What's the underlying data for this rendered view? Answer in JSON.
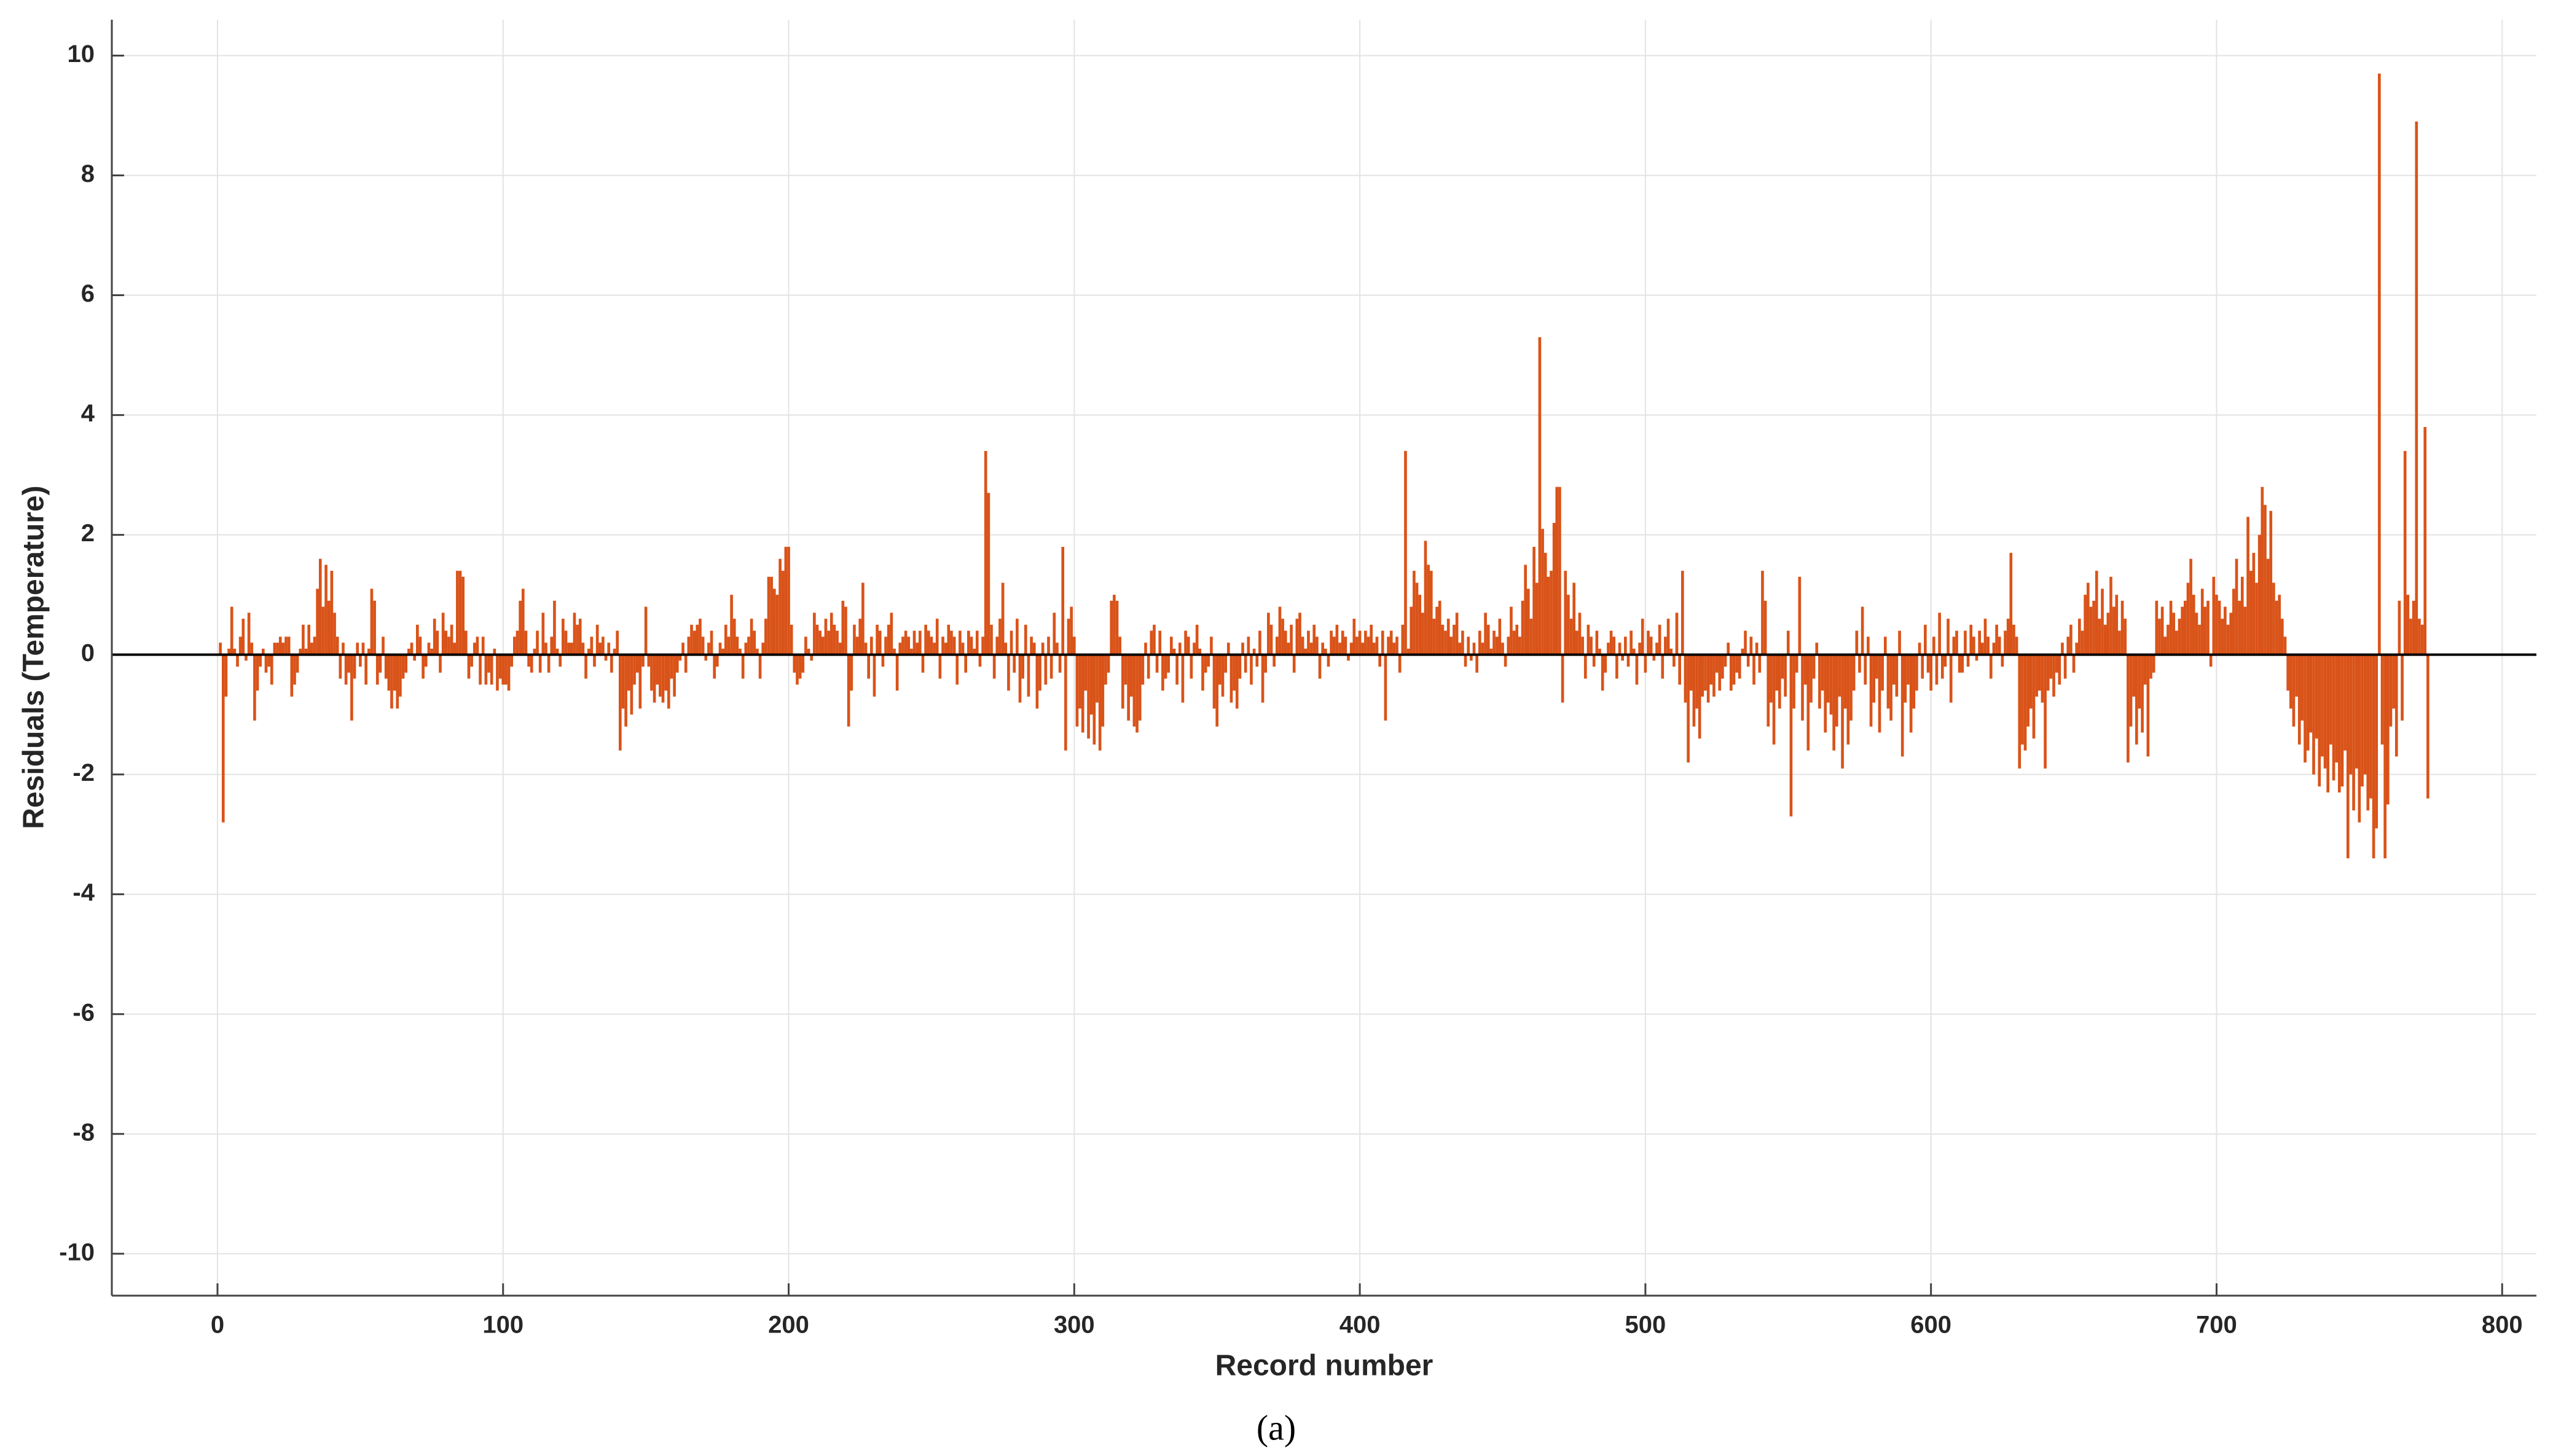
{
  "chart_data": {
    "type": "bar",
    "xlabel": "Record number",
    "ylabel": "Residuals (Temperature)",
    "caption": "(a)",
    "color": "#d95319",
    "grid": true,
    "xlim": [
      -37,
      812
    ],
    "ylim": [
      -10.7,
      10.6
    ],
    "xticks": [
      0,
      100,
      200,
      300,
      400,
      500,
      600,
      700,
      800
    ],
    "yticks": [
      -10,
      -8,
      -6,
      -4,
      -2,
      0,
      2,
      4,
      6,
      8,
      10
    ],
    "x": [
      1,
      2,
      3,
      4,
      5,
      6,
      7,
      8,
      9,
      10,
      11,
      12,
      13,
      14,
      15,
      16,
      17,
      18,
      19,
      20,
      21,
      22,
      23,
      24,
      25,
      26,
      27,
      28,
      29,
      30,
      31,
      32,
      33,
      34,
      35,
      36,
      37,
      38,
      39,
      40,
      41,
      42,
      43,
      44,
      45,
      46,
      47,
      48,
      49,
      50,
      51,
      52,
      53,
      54,
      55,
      56,
      57,
      58,
      59,
      60,
      61,
      62,
      63,
      64,
      65,
      66,
      67,
      68,
      69,
      70,
      71,
      72,
      73,
      74,
      75,
      76,
      77,
      78,
      79,
      80,
      81,
      82,
      83,
      84,
      85,
      86,
      87,
      88,
      89,
      90,
      91,
      92,
      93,
      94,
      95,
      96,
      97,
      98,
      99,
      100,
      101,
      102,
      103,
      104,
      105,
      106,
      107,
      108,
      109,
      110,
      111,
      112,
      113,
      114,
      115,
      116,
      117,
      118,
      119,
      120,
      121,
      122,
      123,
      124,
      125,
      126,
      127,
      128,
      129,
      130,
      131,
      132,
      133,
      134,
      135,
      136,
      137,
      138,
      139,
      140,
      141,
      142,
      143,
      144,
      145,
      146,
      147,
      148,
      149,
      150,
      151,
      152,
      153,
      154,
      155,
      156,
      157,
      158,
      159,
      160,
      161,
      162,
      163,
      164,
      165,
      166,
      167,
      168,
      169,
      170,
      171,
      172,
      173,
      174,
      175,
      176,
      177,
      178,
      179,
      180,
      181,
      182,
      183,
      184,
      185,
      186,
      187,
      188,
      189,
      190,
      191,
      192,
      193,
      194,
      195,
      196,
      197,
      198,
      199,
      200,
      201,
      202,
      203,
      204,
      205,
      206,
      207,
      208,
      209,
      210,
      211,
      212,
      213,
      214,
      215,
      216,
      217,
      218,
      219,
      220,
      221,
      222,
      223,
      224,
      225,
      226,
      227,
      228,
      229,
      230,
      231,
      232,
      233,
      234,
      235,
      236,
      237,
      238,
      239,
      240,
      241,
      242,
      243,
      244,
      245,
      246,
      247,
      248,
      249,
      250,
      251,
      252,
      253,
      254,
      255,
      256,
      257,
      258,
      259,
      260,
      261,
      262,
      263,
      264,
      265,
      266,
      267,
      268,
      269,
      270,
      271,
      272,
      273,
      274,
      275,
      276,
      277,
      278,
      279,
      280,
      281,
      282,
      283,
      284,
      285,
      286,
      287,
      288,
      289,
      290,
      291,
      292,
      293,
      294,
      295,
      296,
      297,
      298,
      299,
      300,
      301,
      302,
      303,
      304,
      305,
      306,
      307,
      308,
      309,
      310,
      311,
      312,
      313,
      314,
      315,
      316,
      317,
      318,
      319,
      320,
      321,
      322,
      323,
      324,
      325,
      326,
      327,
      328,
      329,
      330,
      331,
      332,
      333,
      334,
      335,
      336,
      337,
      338,
      339,
      340,
      341,
      342,
      343,
      344,
      345,
      346,
      347,
      348,
      349,
      350,
      351,
      352,
      353,
      354,
      355,
      356,
      357,
      358,
      359,
      360,
      361,
      362,
      363,
      364,
      365,
      366,
      367,
      368,
      369,
      370,
      371,
      372,
      373,
      374,
      375,
      376,
      377,
      378,
      379,
      380,
      381,
      382,
      383,
      384,
      385,
      386,
      387,
      388,
      389,
      390,
      391,
      392,
      393,
      394,
      395,
      396,
      397,
      398,
      399,
      400,
      401,
      402,
      403,
      404,
      405,
      406,
      407,
      408,
      409,
      410,
      411,
      412,
      413,
      414,
      415,
      416,
      417,
      418,
      419,
      420,
      421,
      422,
      423,
      424,
      425,
      426,
      427,
      428,
      429,
      430,
      431,
      432,
      433,
      434,
      435,
      436,
      437,
      438,
      439,
      440,
      441,
      442,
      443,
      444,
      445,
      446,
      447,
      448,
      449,
      450,
      451,
      452,
      453,
      454,
      455,
      456,
      457,
      458,
      459,
      460,
      461,
      462,
      463,
      464,
      465,
      466,
      467,
      468,
      469,
      470,
      471,
      472,
      473,
      474,
      475,
      476,
      477,
      478,
      479,
      480,
      481,
      482,
      483,
      484,
      485,
      486,
      487,
      488,
      489,
      490,
      491,
      492,
      493,
      494,
      495,
      496,
      497,
      498,
      499,
      500,
      501,
      502,
      503,
      504,
      505,
      506,
      507,
      508,
      509,
      510,
      511,
      512,
      513,
      514,
      515,
      516,
      517,
      518,
      519,
      520,
      521,
      522,
      523,
      524,
      525,
      526,
      527,
      528,
      529,
      530,
      531,
      532,
      533,
      534,
      535,
      536,
      537,
      538,
      539,
      540,
      541,
      542,
      543,
      544,
      545,
      546,
      547,
      548,
      549,
      550,
      551,
      552,
      553,
      554,
      555,
      556,
      557,
      558,
      559,
      560,
      561,
      562,
      563,
      564,
      565,
      566,
      567,
      568,
      569,
      570,
      571,
      572,
      573,
      574,
      575,
      576,
      577,
      578,
      579,
      580,
      581,
      582,
      583,
      584,
      585,
      586,
      587,
      588,
      589,
      590,
      591,
      592,
      593,
      594,
      595,
      596,
      597,
      598,
      599,
      600,
      601,
      602,
      603,
      604,
      605,
      606,
      607,
      608,
      609,
      610,
      611,
      612,
      613,
      614,
      615,
      616,
      617,
      618,
      619,
      620,
      621,
      622,
      623,
      624,
      625,
      626,
      627,
      628,
      629,
      630,
      631,
      632,
      633,
      634,
      635,
      636,
      637,
      638,
      639,
      640,
      641,
      642,
      643,
      644,
      645,
      646,
      647,
      648,
      649,
      650,
      651,
      652,
      653,
      654,
      655,
      656,
      657,
      658,
      659,
      660,
      661,
      662,
      663,
      664,
      665,
      666,
      667,
      668,
      669,
      670,
      671,
      672,
      673,
      674,
      675,
      676,
      677,
      678,
      679,
      680,
      681,
      682,
      683,
      684,
      685,
      686,
      687,
      688,
      689,
      690,
      691,
      692,
      693,
      694,
      695,
      696,
      697,
      698,
      699,
      700,
      701,
      702,
      703,
      704,
      705,
      706,
      707,
      708,
      709,
      710,
      711,
      712,
      713,
      714,
      715,
      716,
      717,
      718,
      719,
      720,
      721,
      722,
      723,
      724,
      725,
      726,
      727,
      728,
      729,
      730,
      731,
      732,
      733,
      734,
      735,
      736,
      737,
      738,
      739,
      740,
      741,
      742,
      743,
      744,
      745,
      746,
      747,
      748,
      749,
      750,
      751,
      752,
      753,
      754,
      755,
      756,
      757,
      758,
      759,
      760,
      761,
      762,
      763,
      764,
      765,
      766,
      767,
      768,
      769,
      770,
      771,
      772,
      773,
      774
    ],
    "values": [
      0.2,
      -2.8,
      -0.7,
      0.1,
      0.8,
      0.1,
      -0.2,
      0.3,
      0.6,
      -0.1,
      0.7,
      0.2,
      -1.1,
      -0.6,
      -0.2,
      0.1,
      -0.3,
      -0.2,
      -0.5,
      0.2,
      0.2,
      0.3,
      0.2,
      0.3,
      0.3,
      -0.7,
      -0.5,
      -0.3,
      0.1,
      0.5,
      0.1,
      0.5,
      0.2,
      0.3,
      1.1,
      1.6,
      0.8,
      1.5,
      0.9,
      1.4,
      0.7,
      0.3,
      -0.4,
      0.2,
      -0.5,
      -0.3,
      -1.1,
      -0.4,
      0.2,
      -0.2,
      0.2,
      -0.5,
      0.1,
      1.1,
      0.9,
      -0.5,
      -0.3,
      0.3,
      -0.4,
      -0.6,
      -0.9,
      -0.6,
      -0.9,
      -0.7,
      -0.4,
      -0.3,
      0.1,
      0.2,
      -0.1,
      0.5,
      0.3,
      -0.4,
      -0.2,
      0.2,
      0.1,
      0.6,
      0.4,
      -0.3,
      0.7,
      0.4,
      0.3,
      0.5,
      0.2,
      1.4,
      1.4,
      1.3,
      0.4,
      -0.4,
      -0.2,
      0.2,
      0.3,
      -0.5,
      0.3,
      -0.5,
      -0.3,
      -0.5,
      0.1,
      -0.6,
      -0.4,
      -0.5,
      -0.5,
      -0.6,
      -0.2,
      0.3,
      0.4,
      0.9,
      1.1,
      0.4,
      -0.2,
      -0.3,
      0.1,
      0.4,
      -0.3,
      0.7,
      0.2,
      -0.3,
      0.3,
      0.9,
      0.1,
      -0.2,
      0.6,
      0.4,
      0.2,
      0.2,
      0.7,
      0.5,
      0.6,
      0.2,
      -0.4,
      0.1,
      0.3,
      -0.2,
      0.5,
      0.2,
      0.3,
      -0.1,
      0.2,
      -0.3,
      0.1,
      0.4,
      -1.6,
      -0.9,
      -1.2,
      -0.6,
      -1.0,
      -0.5,
      -0.3,
      -0.9,
      -0.2,
      0.8,
      -0.2,
      -0.6,
      -0.8,
      -0.5,
      -0.7,
      -0.8,
      -0.6,
      -0.9,
      -0.4,
      -0.7,
      -0.3,
      -0.1,
      0.2,
      -0.3,
      0.3,
      0.5,
      0.4,
      0.5,
      0.6,
      0.3,
      -0.1,
      0.2,
      0.4,
      -0.4,
      -0.2,
      0.2,
      0.1,
      0.5,
      0.3,
      1.0,
      0.6,
      0.3,
      0.1,
      -0.4,
      0.2,
      0.3,
      0.6,
      0.4,
      0.1,
      -0.4,
      0.2,
      0.6,
      1.3,
      1.3,
      1.1,
      1.0,
      1.6,
      1.4,
      1.8,
      1.8,
      0.5,
      -0.3,
      -0.5,
      -0.4,
      -0.3,
      0.3,
      0.1,
      -0.1,
      0.7,
      0.5,
      0.4,
      0.3,
      0.6,
      0.4,
      0.7,
      0.5,
      0.4,
      0.2,
      0.9,
      0.8,
      -1.2,
      -0.6,
      0.5,
      0.3,
      0.6,
      1.2,
      0.2,
      -0.4,
      0.3,
      -0.7,
      0.5,
      0.4,
      -0.2,
      0.3,
      0.5,
      0.7,
      0.1,
      -0.6,
      0.2,
      0.3,
      0.4,
      0.3,
      0.1,
      0.4,
      0.2,
      0.4,
      -0.3,
      0.5,
      0.4,
      0.3,
      0.2,
      0.6,
      -0.4,
      0.3,
      0.2,
      0.5,
      0.4,
      0.3,
      -0.5,
      0.4,
      0.2,
      -0.3,
      0.4,
      0.3,
      0.1,
      0.4,
      -0.2,
      0.3,
      3.4,
      2.7,
      0.5,
      -0.4,
      0.3,
      0.6,
      1.2,
      0.2,
      -0.6,
      0.4,
      -0.3,
      0.6,
      -0.8,
      -0.4,
      0.5,
      -0.7,
      0.3,
      0.2,
      -0.9,
      -0.6,
      0.2,
      -0.5,
      0.3,
      -0.4,
      0.7,
      0.2,
      -0.3,
      1.8,
      -1.6,
      0.6,
      0.8,
      0.3,
      -1.2,
      -0.9,
      -1.3,
      -0.6,
      -1.4,
      -1.0,
      -1.5,
      -0.8,
      -1.6,
      -1.2,
      -0.5,
      -0.3,
      0.9,
      1.0,
      0.9,
      0.3,
      -0.9,
      -0.5,
      -1.1,
      -0.7,
      -1.2,
      -1.3,
      -1.1,
      -0.5,
      0.2,
      -0.4,
      0.4,
      0.5,
      -0.3,
      0.4,
      -0.6,
      -0.4,
      -0.3,
      0.3,
      0.1,
      -0.5,
      0.2,
      -0.8,
      0.4,
      0.3,
      -0.4,
      0.2,
      0.5,
      0.1,
      -0.6,
      -0.3,
      -0.2,
      0.3,
      -0.9,
      -1.2,
      -0.5,
      -0.7,
      -0.3,
      0.2,
      -0.8,
      -0.6,
      -0.9,
      -0.4,
      0.2,
      -0.3,
      0.3,
      -0.5,
      0.1,
      -0.2,
      0.4,
      -0.8,
      -0.3,
      0.7,
      0.5,
      -0.2,
      0.3,
      0.8,
      0.6,
      0.4,
      0.2,
      0.5,
      -0.3,
      0.6,
      0.7,
      0.3,
      0.1,
      0.4,
      0.2,
      0.5,
      0.3,
      -0.4,
      0.2,
      0.1,
      -0.2,
      0.4,
      0.3,
      0.5,
      0.2,
      0.4,
      0.3,
      -0.1,
      0.2,
      0.6,
      0.3,
      0.4,
      0.2,
      0.4,
      0.3,
      0.5,
      0.2,
      0.3,
      -0.2,
      0.4,
      -1.1,
      0.3,
      0.4,
      0.2,
      0.3,
      -0.3,
      0.5,
      3.4,
      0.1,
      0.8,
      1.4,
      1.2,
      1.0,
      0.7,
      1.9,
      1.5,
      1.4,
      0.6,
      0.8,
      0.9,
      0.5,
      0.4,
      0.6,
      0.3,
      0.5,
      0.7,
      0.2,
      0.4,
      -0.2,
      0.3,
      -0.1,
      0.2,
      -0.3,
      0.4,
      0.2,
      0.7,
      0.5,
      0.1,
      0.4,
      0.3,
      0.6,
      0.2,
      -0.2,
      0.3,
      0.8,
      0.4,
      0.5,
      0.3,
      0.9,
      1.5,
      1.1,
      0.6,
      1.8,
      1.2,
      5.3,
      2.1,
      1.7,
      1.3,
      1.4,
      2.2,
      2.8,
      2.8,
      -0.8,
      1.4,
      1.0,
      0.6,
      1.2,
      0.4,
      0.7,
      0.3,
      -0.4,
      0.5,
      0.3,
      -0.2,
      0.4,
      0.1,
      -0.6,
      -0.3,
      0.2,
      0.4,
      0.3,
      -0.4,
      0.2,
      -0.1,
      0.3,
      -0.2,
      0.4,
      0.1,
      -0.5,
      0.2,
      0.6,
      -0.3,
      0.4,
      0.3,
      -0.1,
      0.2,
      0.5,
      -0.4,
      0.3,
      0.6,
      0.1,
      -0.2,
      0.7,
      -0.5,
      1.4,
      -0.8,
      -1.8,
      -0.6,
      -1.2,
      -0.9,
      -1.4,
      -0.7,
      -0.6,
      -0.8,
      -0.5,
      -0.7,
      -0.3,
      -0.6,
      -0.4,
      -0.2,
      0.2,
      -0.6,
      -0.5,
      -0.3,
      -0.4,
      0.1,
      0.4,
      -0.2,
      0.3,
      -0.5,
      0.2,
      -0.3,
      1.4,
      0.9,
      -1.2,
      -0.8,
      -1.5,
      -0.6,
      -0.9,
      -0.4,
      -0.7,
      0.4,
      -2.7,
      -0.9,
      -0.3,
      1.3,
      -1.1,
      -0.5,
      -1.6,
      -0.8,
      -0.4,
      0.2,
      -0.9,
      -0.6,
      -1.3,
      -0.8,
      -1.0,
      -1.6,
      -1.2,
      -0.7,
      -1.9,
      -0.9,
      -1.5,
      -1.1,
      -0.6,
      0.4,
      -0.3,
      0.8,
      -0.5,
      0.3,
      -1.2,
      -0.8,
      -0.4,
      -1.3,
      -0.6,
      0.3,
      -0.9,
      -1.1,
      -0.5,
      -0.7,
      0.4,
      -1.7,
      -0.8,
      -0.5,
      -1.3,
      -0.9,
      -0.6,
      0.2,
      -0.4,
      0.5,
      -0.3,
      -0.6,
      0.3,
      -0.5,
      0.7,
      -0.4,
      -0.2,
      0.6,
      -0.8,
      0.3,
      0.4,
      -0.3,
      -0.3,
      0.4,
      -0.2,
      0.5,
      0.3,
      -0.1,
      0.4,
      0.2,
      0.6,
      0.3,
      -0.4,
      0.2,
      0.5,
      0.3,
      -0.2,
      0.4,
      0.6,
      1.7,
      0.5,
      0.3,
      -1.9,
      -1.5,
      -1.6,
      -1.2,
      -0.9,
      -1.4,
      -0.7,
      -0.6,
      -0.8,
      -1.9,
      -0.6,
      -0.4,
      -0.7,
      -0.3,
      -0.5,
      0.2,
      -0.4,
      0.3,
      0.5,
      -0.3,
      0.2,
      0.6,
      0.4,
      1.0,
      1.2,
      0.8,
      0.9,
      1.4,
      0.6,
      1.1,
      0.5,
      0.7,
      1.3,
      0.8,
      1.0,
      0.4,
      0.9,
      0.6,
      -1.8,
      -1.2,
      -0.7,
      -1.5,
      -0.9,
      -1.3,
      -0.5,
      -1.7,
      -0.4,
      -0.3,
      0.9,
      0.6,
      0.8,
      0.3,
      0.5,
      0.9,
      0.7,
      0.4,
      0.6,
      0.8,
      0.9,
      1.2,
      1.6,
      1.0,
      0.7,
      0.5,
      1.1,
      0.8,
      0.9,
      -0.2,
      1.3,
      1.0,
      0.9,
      0.6,
      0.8,
      0.5,
      0.7,
      1.1,
      1.6,
      0.9,
      1.3,
      0.8,
      2.3,
      1.4,
      1.7,
      1.2,
      2.0,
      2.8,
      2.5,
      1.6,
      2.4,
      1.2,
      0.9,
      1.0,
      0.6,
      0.3,
      -0.6,
      -0.9,
      -1.2,
      -0.7,
      -1.5,
      -1.1,
      -1.8,
      -1.6,
      -1.3,
      -2.0,
      -1.4,
      -2.2,
      -1.7,
      -1.9,
      -2.3,
      -1.5,
      -2.1,
      -1.8,
      -2.3,
      -2.2,
      -1.6,
      -3.4,
      -2.0,
      -2.6,
      -1.9,
      -2.8,
      -2.2,
      -2.0,
      -2.6,
      -2.4,
      -3.4,
      -2.9,
      9.7,
      -1.5,
      -3.4,
      -2.5,
      -1.2,
      -0.9,
      -1.7,
      0.9,
      -1.1,
      3.4,
      1.0,
      0.6,
      0.9,
      8.9,
      0.6,
      0.5,
      3.8,
      -2.4
    ]
  }
}
